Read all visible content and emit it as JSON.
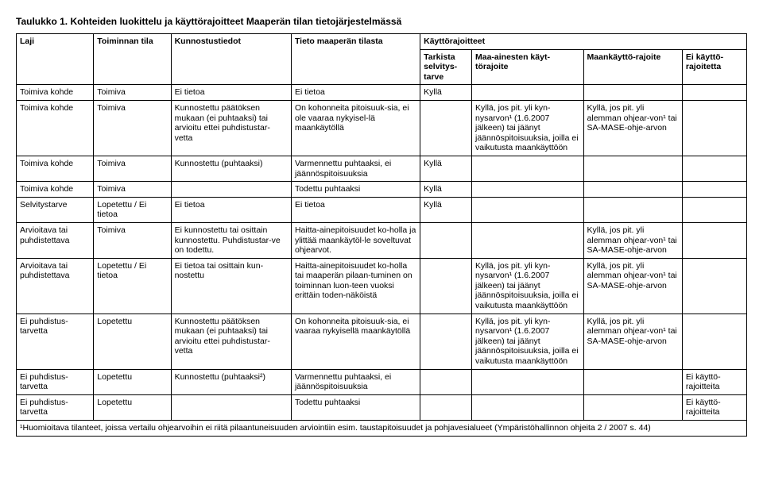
{
  "title": "Taulukko 1. Kohteiden luokittelu ja käyttörajoitteet Maaperän tilan tietojärjestelmässä",
  "headers": {
    "laji": "Laji",
    "toiminnan_tila": "Toiminnan tila",
    "kunnostustiedot": "Kunnostustiedot",
    "tieto_tilasta": "Tieto maaperän tilasta",
    "kayttorajoitteet": "Käyttörajoitteet",
    "tarkista": "Tarkista selvitys-tarve",
    "maa_ainesten": "Maa-ainesten käyt-törajoite",
    "maankaytto": "Maankäyttö-rajoite",
    "ei_kaytto": "Ei käyttö-rajoitetta"
  },
  "rows": [
    {
      "c0": "Toimiva kohde",
      "c1": "Toimiva",
      "c2": "Ei tietoa",
      "c3": "Ei tietoa",
      "c4": "Kyllä",
      "c5": "",
      "c6": "",
      "c7": ""
    },
    {
      "c0": "Toimiva kohde",
      "c1": "Toimiva",
      "c2": "Kunnostettu päätöksen mukaan (ei puhtaaksi) tai arvioitu ettei puhdistustar-vetta",
      "c3": "On kohonneita pitoisuuk-sia, ei ole vaaraa nykyisel-lä maankäytöllä",
      "c4": "",
      "c5": "Kyllä, jos pit. yli kyn-nysarvon¹ (1.6.2007 jälkeen) tai jäänyt jäännöspitoisuuksia, joilla ei vaikutusta maankäyttöön",
      "c6": "Kyllä, jos pit. yli alemman ohjear-von¹ tai SA-MASE-ohje-arvon",
      "c7": ""
    },
    {
      "c0": "Toimiva kohde",
      "c1": "Toimiva",
      "c2": "Kunnostettu (puhtaaksi)",
      "c3": "Varmennettu puhtaaksi, ei jäännöspitoisuuksia",
      "c4": "Kyllä",
      "c5": "",
      "c6": "",
      "c7": ""
    },
    {
      "c0": "Toimiva kohde",
      "c1": "Toimiva",
      "c2": "",
      "c3": "Todettu puhtaaksi",
      "c4": "Kyllä",
      "c5": "",
      "c6": "",
      "c7": ""
    },
    {
      "c0": "Selvitystarve",
      "c1": "Lopetettu / Ei tietoa",
      "c2": "Ei tietoa",
      "c3": "Ei tietoa",
      "c4": "Kyllä",
      "c5": "",
      "c6": "",
      "c7": ""
    },
    {
      "c0": "Arvioitava tai puhdistettava",
      "c1": "Toimiva",
      "c2": "Ei kunnostettu tai osittain kunnostettu. Puhdistustar-ve on todettu.",
      "c3": "Haitta-ainepitoisuudet ko-holla ja ylittää maankäytöl-le soveltuvat ohjearvot.",
      "c4": "",
      "c5": "",
      "c6": "Kyllä, jos pit. yli alemman ohjear-von¹ tai SA-MASE-ohje-arvon",
      "c7": ""
    },
    {
      "c0": "Arvioitava tai puhdistettava",
      "c1": "Lopetettu / Ei tietoa",
      "c2": "Ei tietoa tai osittain kun-nostettu",
      "c3": "Haitta-ainepitoisuudet ko-holla tai maaperän pilaan-tuminen on toiminnan luon-teen vuoksi erittäin toden-näköistä",
      "c4": "",
      "c5": "Kyllä, jos pit. yli kyn-nysarvon¹ (1.6.2007 jälkeen) tai jäänyt jäännöspitoisuuksia, joilla ei vaikutusta maankäyttöön",
      "c6": "Kyllä, jos pit. yli alemman ohjear-von¹ tai SA-MASE-ohje-arvon",
      "c7": ""
    },
    {
      "c0": "Ei puhdistus-tarvetta",
      "c1": "Lopetettu",
      "c2": "Kunnostettu päätöksen mukaan (ei puhtaaksi) tai arvioitu ettei puhdistustar-vetta",
      "c3": "On kohonneita pitoisuuk-sia, ei vaaraa nykyisellä maankäytöllä",
      "c4": "",
      "c5": "Kyllä, jos pit. yli kyn-nysarvon¹ (1.6.2007 jälkeen) tai jäänyt jäännöspitoisuuksia, joilla ei vaikutusta maankäyttöön",
      "c6": "Kyllä, jos pit. yli alemman ohjear-von¹ tai SA-MASE-ohje-arvon",
      "c7": ""
    },
    {
      "c0": "Ei puhdistus-tarvetta",
      "c1": "Lopetettu",
      "c2": "Kunnostettu (puhtaaksi²)",
      "c3": "Varmennettu puhtaaksi, ei jäännöspitoisuuksia",
      "c4": "",
      "c5": "",
      "c6": "",
      "c7": "Ei käyttö-rajoitteita"
    },
    {
      "c0": "Ei puhdistus-tarvetta",
      "c1": "Lopetettu",
      "c2": "",
      "c3": "Todettu puhtaaksi",
      "c4": "",
      "c5": "",
      "c6": "",
      "c7": "Ei käyttö-rajoitteita"
    }
  ],
  "footnote": "¹Huomioitava tilanteet, joissa vertailu ohjearvoihin ei riitä pilaantuneisuuden arviointiin esim. taustapitoisuudet ja pohjavesialueet (Ympäristöhallinnon ohjeita 2 / 2007 s. 44)",
  "col_widths": [
    "90px",
    "90px",
    "140px",
    "150px",
    "60px",
    "130px",
    "115px",
    "75px"
  ]
}
